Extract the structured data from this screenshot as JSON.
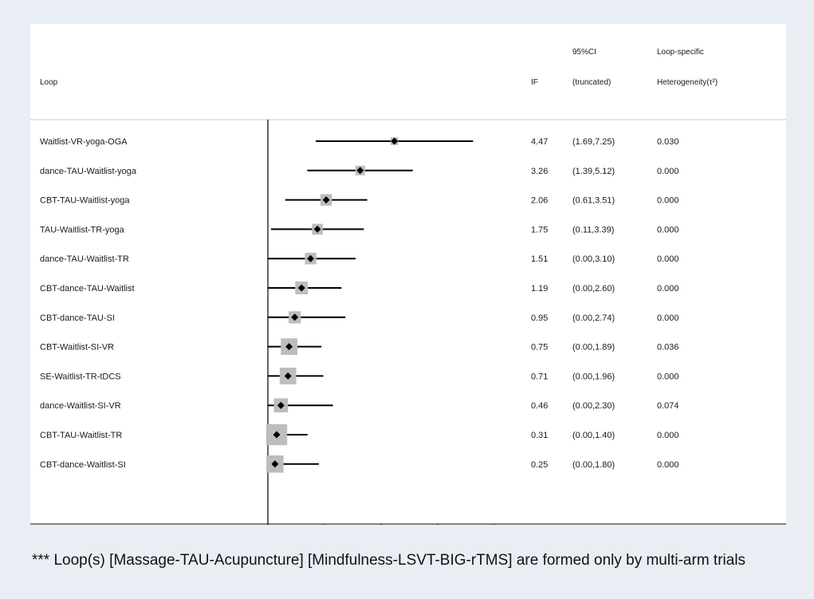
{
  "header": {
    "loop": "Loop",
    "if": "IF",
    "ci_line1": "95%CI",
    "ci_line2": "(truncated)",
    "het_line1": "Loop-specific",
    "het_line2": "Heterogeneity(τ²)"
  },
  "footnote": "*** Loop(s)  [Massage-TAU-Acupuncture] [Mindfulness-LSVT-BIG-rTMS] are formed only by multi-arm trials",
  "chart_data": {
    "type": "forest",
    "xlim": [
      0,
      8
    ],
    "xticks": [
      0,
      2,
      4,
      6,
      8
    ],
    "marker_color": "#bdbdbd",
    "rows": [
      {
        "loop": "Waitlist-VR-yoga-OGA",
        "if": 4.47,
        "lo": 1.69,
        "hi": 7.25,
        "if_text": "4.47",
        "ci_text": "(1.69,7.25)",
        "tau2_text": "0.030",
        "weight": 0.6
      },
      {
        "loop": "dance-TAU-Waitlist-yoga",
        "if": 3.26,
        "lo": 1.39,
        "hi": 5.12,
        "if_text": "3.26",
        "ci_text": "(1.39,5.12)",
        "tau2_text": "0.000",
        "weight": 0.75
      },
      {
        "loop": "CBT-TAU-Waitlist-yoga",
        "if": 2.06,
        "lo": 0.61,
        "hi": 3.51,
        "if_text": "2.06",
        "ci_text": "(0.61,3.51)",
        "tau2_text": "0.000",
        "weight": 0.9
      },
      {
        "loop": "TAU-Waitlist-TR-yoga",
        "if": 1.75,
        "lo": 0.11,
        "hi": 3.39,
        "if_text": "1.75",
        "ci_text": "(0.11,3.39)",
        "tau2_text": "0.000",
        "weight": 0.85
      },
      {
        "loop": "dance-TAU-Waitlist-TR",
        "if": 1.51,
        "lo": 0.0,
        "hi": 3.1,
        "if_text": "1.51",
        "ci_text": "(0.00,3.10)",
        "tau2_text": "0.000",
        "weight": 0.9
      },
      {
        "loop": "CBT-dance-TAU-Waitlist",
        "if": 1.19,
        "lo": 0.0,
        "hi": 2.6,
        "if_text": "1.19",
        "ci_text": "(0.00,2.60)",
        "tau2_text": "0.000",
        "weight": 1.0
      },
      {
        "loop": "CBT-dance-TAU-SI",
        "if": 0.95,
        "lo": 0.0,
        "hi": 2.74,
        "if_text": "0.95",
        "ci_text": "(0.00,2.74)",
        "tau2_text": "0.000",
        "weight": 0.95
      },
      {
        "loop": "CBT-Waitlist-SI-VR",
        "if": 0.75,
        "lo": 0.0,
        "hi": 1.89,
        "if_text": "0.75",
        "ci_text": "(0.00,1.89)",
        "tau2_text": "0.036",
        "weight": 1.3
      },
      {
        "loop": "SE-Waitlist-TR-tDCS",
        "if": 0.71,
        "lo": 0.0,
        "hi": 1.96,
        "if_text": "0.71",
        "ci_text": "(0.00,1.96)",
        "tau2_text": "0.000",
        "weight": 1.3
      },
      {
        "loop": "dance-Waitlist-SI-VR",
        "if": 0.46,
        "lo": 0.0,
        "hi": 2.3,
        "if_text": "0.46",
        "ci_text": "(0.00,2.30)",
        "tau2_text": "0.074",
        "weight": 1.1
      },
      {
        "loop": "CBT-TAU-Waitlist-TR",
        "if": 0.31,
        "lo": 0.0,
        "hi": 1.4,
        "if_text": "0.31",
        "ci_text": "(0.00,1.40)",
        "tau2_text": "0.000",
        "weight": 1.65
      },
      {
        "loop": "CBT-dance-Waitlist-SI",
        "if": 0.25,
        "lo": 0.0,
        "hi": 1.8,
        "if_text": "0.25",
        "ci_text": "(0.00,1.80)",
        "tau2_text": "0.000",
        "weight": 1.35
      }
    ]
  }
}
